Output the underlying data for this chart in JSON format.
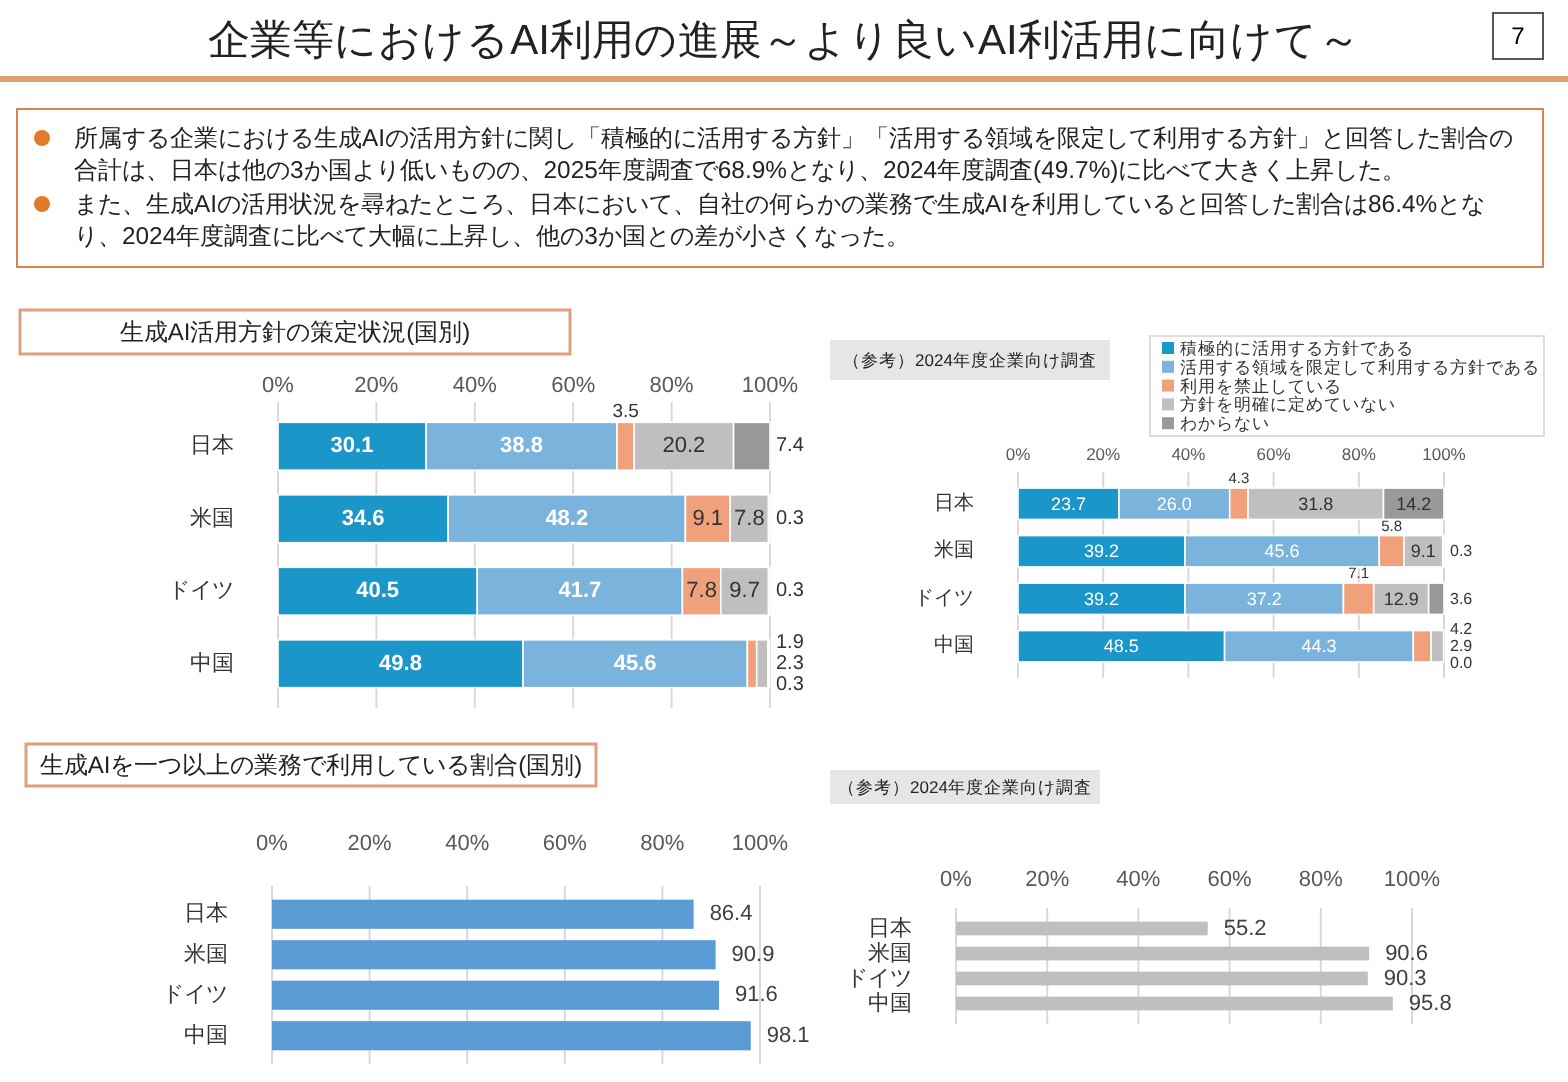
{
  "chart_data": [
    {
      "type": "other",
      "title": "企業等におけるAI利用の進展～より良いAI利活用に向けて～",
      "annotations": [
        "7",
        "所属する企業における生成AIの活用方針に関し「積極的に活用する方針」「活用する領域を限定して利用する方針」と回答した割合の合計は、日本は他の3か国より低いものの、2025年度調査で68.9%となり、2024年度調査(49.7%)に比べて大きく上昇した。",
        "また、生成AIの活用状況を尋ねたところ、日本において、自社の何らかの業務で生成AIを利用していると回答した割合は86.4%となり、2024年度調査に比べて大幅に上昇し、他の3か国との差が小さくなった。"
      ]
    },
    {
      "type": "bar",
      "title": "生成AI活用方針の策定状況(国別)",
      "orientation": "horizontal",
      "stacked": true,
      "data_labels": true,
      "grid": "x",
      "categories": [
        "日本",
        "米国",
        "ドイツ",
        "中国"
      ],
      "xlim": [
        0,
        100
      ],
      "xticks": [
        {
          "value": 0,
          "label": "0%"
        },
        {
          "value": 20,
          "label": "20%"
        },
        {
          "value": 40,
          "label": "40%"
        },
        {
          "value": 60,
          "label": "60%"
        },
        {
          "value": 80,
          "label": "80%"
        },
        {
          "value": 100,
          "label": "100%"
        }
      ],
      "series": [
        {
          "color": "#1a96c8",
          "values": [
            30.1,
            34.6,
            40.5,
            49.8
          ]
        },
        {
          "color": "#7ab4dc",
          "values": [
            38.8,
            48.2,
            41.7,
            45.6
          ]
        },
        {
          "color": "#f1a07c",
          "values": [
            3.5,
            9.1,
            7.8,
            1.9
          ]
        },
        {
          "color": "#bfbfbf",
          "values": [
            20.2,
            7.8,
            9.7,
            2.3
          ]
        },
        {
          "color": "#999999",
          "values": [
            7.4,
            0.3,
            0.3,
            0.3
          ]
        }
      ]
    },
    {
      "type": "bar",
      "title": "（参考）2024年度企業向け調査",
      "orientation": "horizontal",
      "stacked": true,
      "grid": "x",
      "legend": "top right",
      "categories": [
        "日本",
        "米国",
        "ドイツ",
        "中国"
      ],
      "xlim": [
        0,
        100
      ],
      "xticks": [
        {
          "value": 0,
          "label": "0%"
        },
        {
          "value": 20,
          "label": "20%"
        },
        {
          "value": 40,
          "label": "40%"
        },
        {
          "value": 60,
          "label": "60%"
        },
        {
          "value": 80,
          "label": "80%"
        },
        {
          "value": 100,
          "label": "100%"
        }
      ],
      "series": [
        {
          "name": "積極的に活用する方針である",
          "color": "#1a96c8",
          "values": [
            23.7,
            39.2,
            39.2,
            48.5
          ],
          "value_labels": [
            "23.7",
            "39.2",
            "39.2",
            "48.5"
          ]
        },
        {
          "name": "活用する領域を限定して利用する方針である",
          "color": "#7ab4dc",
          "values": [
            26.0,
            45.6,
            37.2,
            44.3
          ],
          "value_labels": [
            "26.0",
            "45.6",
            "37.2",
            "44.3"
          ]
        },
        {
          "name": "利用を禁止している",
          "color": "#f1a07c",
          "values": [
            4.3,
            5.8,
            7.1,
            4.2
          ],
          "value_labels": [
            "4.3",
            "5.8",
            "7.1",
            "4.2"
          ]
        },
        {
          "name": "方針を明確に定めていない",
          "color": "#bfbfbf",
          "values": [
            31.8,
            9.1,
            12.9,
            2.9
          ],
          "value_labels": [
            "31.8",
            "9.1",
            "12.9",
            "2.9"
          ]
        },
        {
          "name": "わからない",
          "color": "#999999",
          "values": [
            14.2,
            0.3,
            3.6,
            0.0
          ],
          "value_labels": [
            "14.2",
            "0.3",
            "3.6",
            "0.0"
          ]
        }
      ]
    },
    {
      "type": "bar",
      "title": "生成AIを一つ以上の業務で利用している割合(国別)",
      "orientation": "horizontal",
      "data_labels": true,
      "grid": "x",
      "categories": [
        "日本",
        "米国",
        "ドイツ",
        "中国"
      ],
      "xlim": [
        0,
        100
      ],
      "xticks": [
        {
          "value": 0,
          "label": "0%"
        },
        {
          "value": 20,
          "label": "20%"
        },
        {
          "value": 40,
          "label": "40%"
        },
        {
          "value": 60,
          "label": "60%"
        },
        {
          "value": 80,
          "label": "80%"
        },
        {
          "value": 100,
          "label": "100%"
        }
      ],
      "series": [
        {
          "color": "#5b9bd5",
          "values": [
            86.4,
            90.9,
            91.6,
            98.1
          ]
        }
      ]
    },
    {
      "type": "bar",
      "title": "（参考）2024年度企業向け調査",
      "orientation": "horizontal",
      "data_labels": true,
      "grid": "x",
      "categories": [
        "日本",
        "米国",
        "ドイツ",
        "中国"
      ],
      "xlim": [
        0,
        100
      ],
      "xticks": [
        {
          "value": 0,
          "label": "0%"
        },
        {
          "value": 20,
          "label": "20%"
        },
        {
          "value": 40,
          "label": "40%"
        },
        {
          "value": 60,
          "label": "60%"
        },
        {
          "value": 80,
          "label": "80%"
        },
        {
          "value": 100,
          "label": "100%"
        }
      ],
      "series": [
        {
          "color": "#bfbfbf",
          "values": [
            55.2,
            90.6,
            90.3,
            95.8
          ]
        }
      ]
    }
  ]
}
